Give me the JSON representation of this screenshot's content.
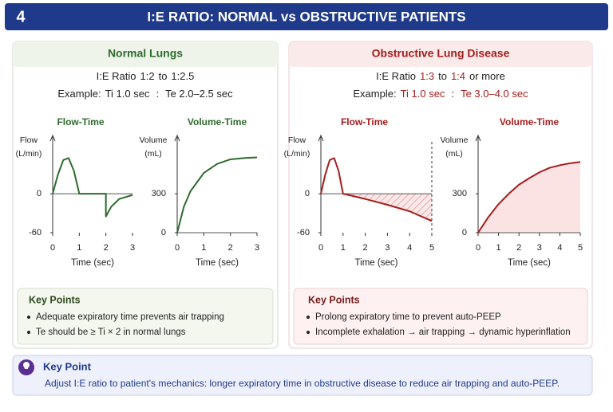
{
  "header": {
    "number": "4",
    "title": "I:E RATIO: NORMAL vs OBSTRUCTIVE PATIENTS"
  },
  "panels": [
    {
      "title": "Normal Lungs",
      "color": "#2e6b2e",
      "ratio_label": "I:E Ratio",
      "ratio_low": "1:2",
      "ratio_joiner": "to",
      "ratio_high": "1:2.5",
      "example_label": "Example:",
      "example_ti": "Ti 1.0 sec",
      "example_sep": ":",
      "example_te": "Te 2.0–2.5 sec",
      "charts": [
        {
          "type": "line",
          "title": "Flow-Time",
          "y_label": [
            "Flow",
            "(L/min)"
          ],
          "x_label": "Time (sec)",
          "xlim": [
            0,
            3
          ],
          "xticks": [
            0,
            1,
            2,
            3
          ],
          "ylim": [
            -60,
            80
          ],
          "yticks": [
            0,
            -60
          ],
          "color": "#2e6b2e",
          "x": [
            0,
            0.2,
            0.4,
            0.6,
            0.8,
            1.0,
            1.5,
            2.0,
            2.0,
            2.2,
            2.5,
            3.0
          ],
          "values": [
            0,
            30,
            52,
            55,
            35,
            0,
            0,
            0,
            -35,
            -20,
            -8,
            -2
          ]
        },
        {
          "type": "line",
          "title": "Volume-Time",
          "y_label": [
            "Volume",
            "(mL)"
          ],
          "x_label": "Time (sec)",
          "xlim": [
            0,
            3
          ],
          "xticks": [
            0,
            1,
            2,
            3
          ],
          "ylim": [
            0,
            700
          ],
          "yticks": [
            0,
            300
          ],
          "color": "#2e6b2e",
          "x": [
            0,
            0.25,
            0.5,
            1,
            1.5,
            2,
            2.5,
            3
          ],
          "values": [
            0,
            200,
            320,
            460,
            530,
            565,
            575,
            580
          ]
        }
      ],
      "key_points": {
        "title": "Key Points",
        "items": [
          "Adequate expiratory time prevents air trapping",
          "Te should be ≥ Ti × 2 in normal lungs"
        ]
      }
    },
    {
      "title": "Obstructive Lung Disease",
      "color": "#a51d1d",
      "ratio_label": "I:E Ratio",
      "ratio_low": "1:3",
      "ratio_joiner": "to",
      "ratio_high": "1:4",
      "ratio_suffix": "or more",
      "example_label": "Example:",
      "example_ti": "Ti 1.0 sec",
      "example_sep": ":",
      "example_te": "Te 3.0–4.0 sec",
      "charts": [
        {
          "type": "line",
          "title": "Flow-Time",
          "y_label": [
            "Flow",
            "(L/min)"
          ],
          "x_label": "Time (sec)",
          "xlim": [
            0,
            5
          ],
          "xticks": [
            0,
            1,
            2,
            3,
            4,
            5
          ],
          "ylim": [
            -60,
            80
          ],
          "yticks": [
            0,
            -60
          ],
          "color": "#a51d1d",
          "area": "hatch",
          "end_line": true,
          "x": [
            0,
            0.2,
            0.4,
            0.6,
            0.8,
            1.0,
            2,
            3,
            4,
            5
          ],
          "values": [
            0,
            30,
            52,
            55,
            35,
            0,
            -8,
            -17,
            -27,
            -42
          ]
        },
        {
          "type": "line",
          "title": "Volume-Time",
          "y_label": [
            "Volume",
            "(mL)"
          ],
          "x_label": "Time (sec)",
          "xlim": [
            0,
            5
          ],
          "xticks": [
            0,
            1,
            2,
            3,
            4,
            5
          ],
          "ylim": [
            0,
            700
          ],
          "yticks": [
            0,
            300
          ],
          "color": "#a51d1d",
          "area": "fill",
          "x": [
            0,
            0.5,
            1,
            1.5,
            2,
            2.5,
            3,
            3.5,
            4,
            4.5,
            5
          ],
          "values": [
            0,
            120,
            220,
            300,
            370,
            420,
            465,
            500,
            520,
            535,
            545
          ]
        }
      ],
      "key_points": {
        "title": "Key Points",
        "items": [
          "Prolong expiratory time to prevent auto-PEEP",
          "Incomplete exhalation → air trapping → dynamic hyperinflation"
        ]
      }
    }
  ],
  "footer": {
    "title": "Key Point",
    "text": "Adjust I:E ratio to patient's mechanics: longer expiratory time in obstructive disease to reduce air trapping and auto-PEEP."
  }
}
